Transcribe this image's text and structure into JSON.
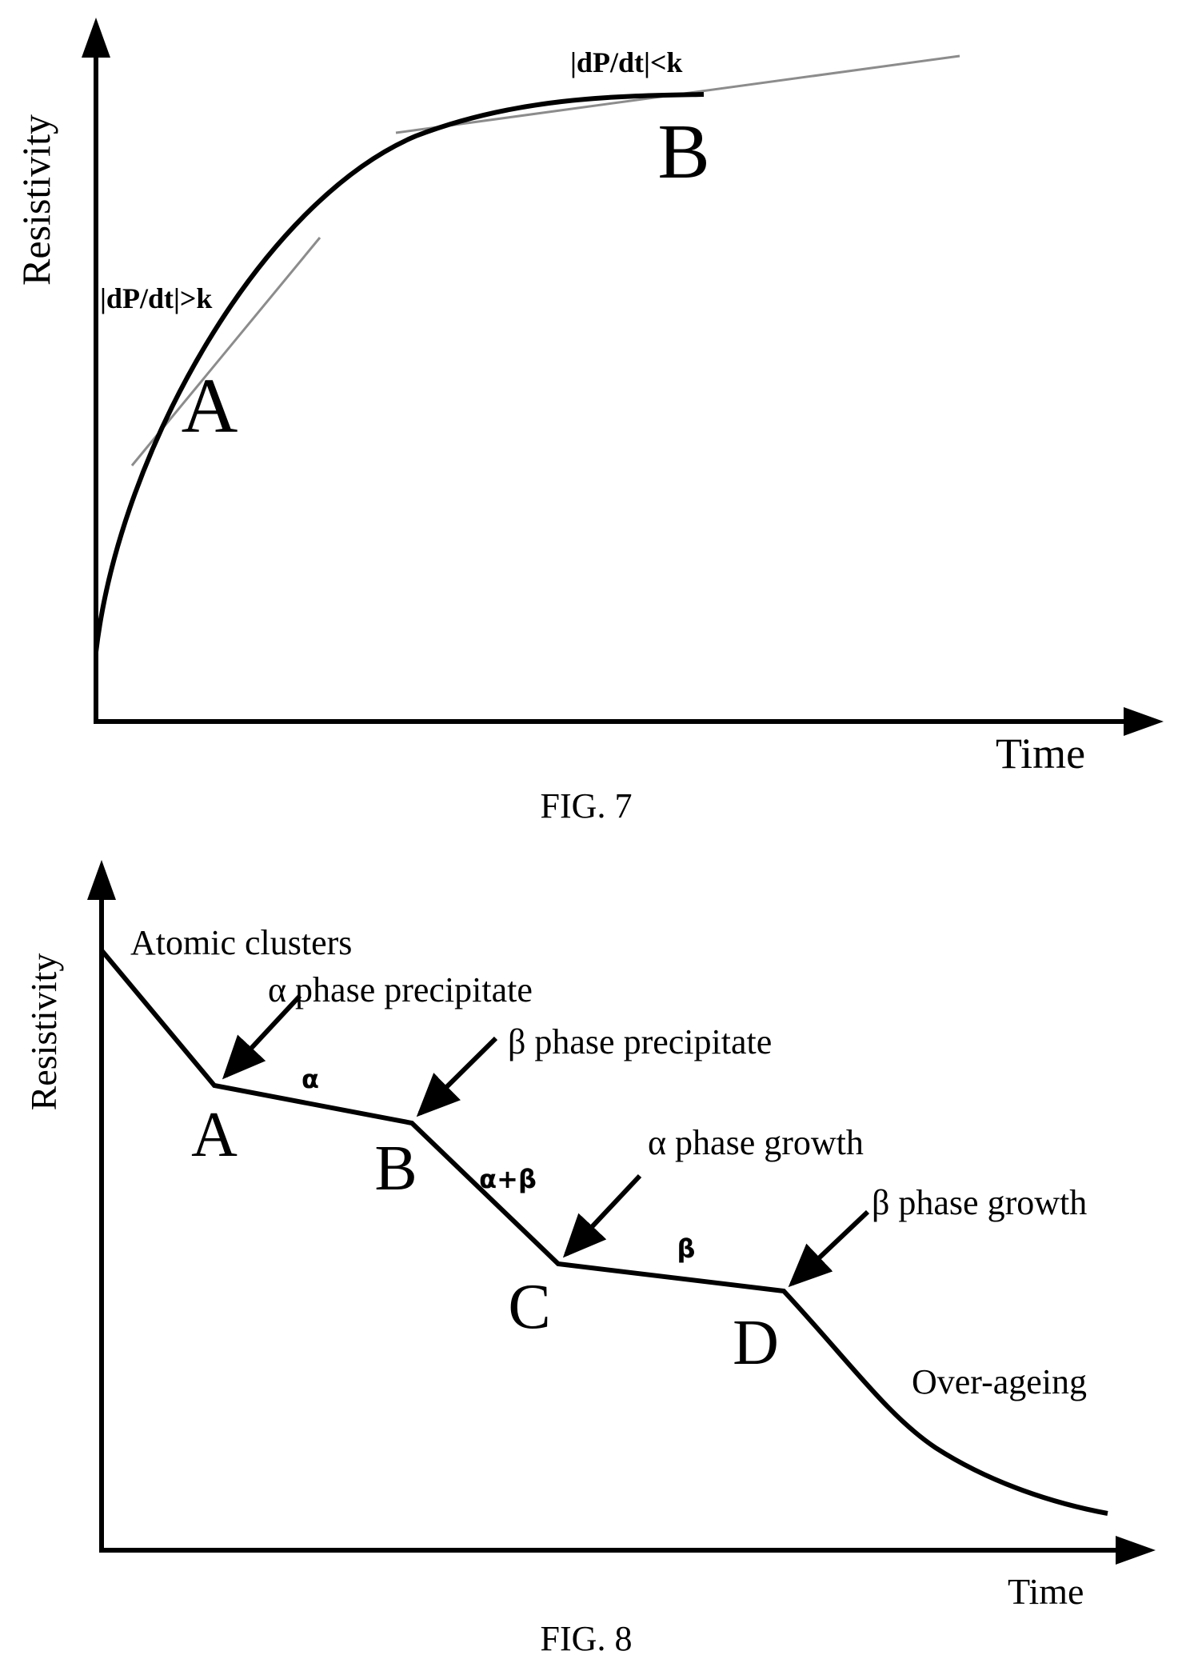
{
  "fig7": {
    "ylabel": "Resistivity",
    "xlabel": "Time",
    "caption": "FIG. 7",
    "slope_label_a": "|dP/dt|>k",
    "slope_label_b": "|dP/dt|<k",
    "point_a": "A",
    "point_b": "B"
  },
  "fig8": {
    "ylabel": "Resistivity",
    "xlabel": "Time",
    "caption": "FIG. 8",
    "annotations": {
      "atomic_clusters": "Atomic clusters",
      "alpha_precipitate": "α phase precipitate",
      "beta_precipitate": "β phase precipitate",
      "alpha_growth": "α phase growth",
      "beta_growth": "β phase growth",
      "over_ageing": "Over-ageing"
    },
    "segments": {
      "alpha": "α",
      "alpha_beta": "α+β",
      "beta": "β"
    },
    "points": {
      "a": "A",
      "b": "B",
      "c": "C",
      "d": "D"
    }
  },
  "colors": {
    "curve": "#000000",
    "tangent": "#8c8c8c"
  }
}
